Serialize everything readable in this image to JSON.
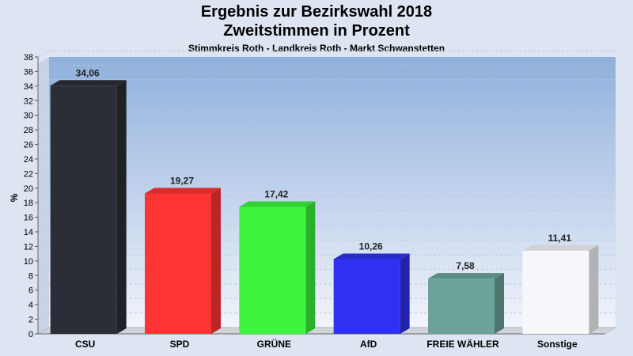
{
  "chart_data": {
    "type": "bar",
    "title": "Ergebnis zur Bezirkswahl 2018",
    "subtitle": "Zweitstimmen in Prozent",
    "subtitle2": "Stimmkreis Roth - Landkreis Roth - Markt Schwanstetten",
    "ylabel": "%",
    "xlabel": "",
    "ylim": [
      0,
      38
    ],
    "ytick_step": 2,
    "grid": true,
    "categories": [
      "CSU",
      "SPD",
      "GRÜNE",
      "AfD",
      "FREIE WÄHLER",
      "Sonstige"
    ],
    "values": [
      34.06,
      19.27,
      17.42,
      10.26,
      7.58,
      11.41
    ],
    "value_labels": [
      "34,06",
      "19,27",
      "17,42",
      "10,26",
      "7,58",
      "11,41"
    ],
    "colors": [
      "#2b2e36",
      "#ff3535",
      "#3cf53c",
      "#3131f2",
      "#6ba39a",
      "#f6f7fb"
    ]
  }
}
